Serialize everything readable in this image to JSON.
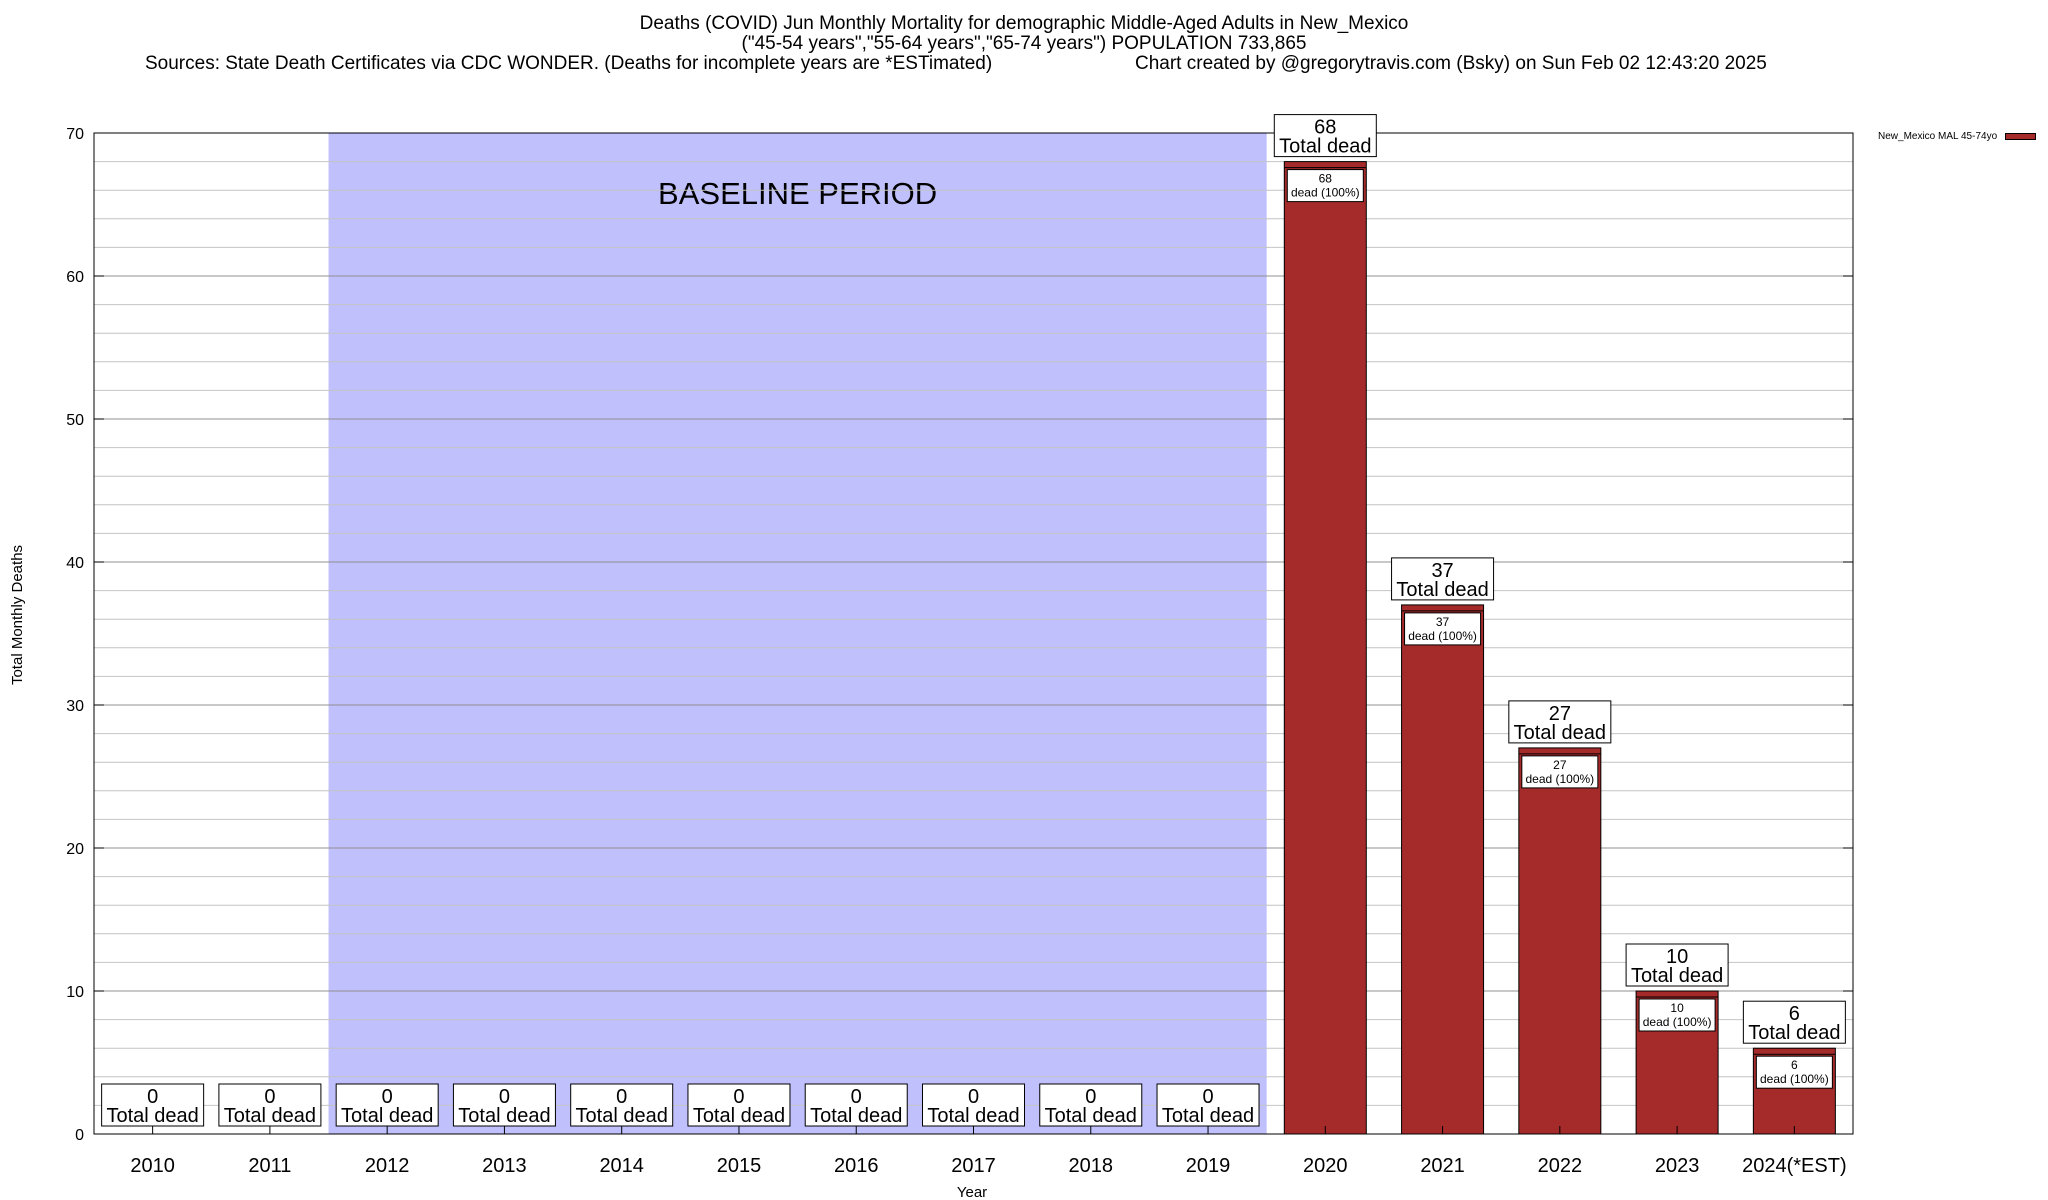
{
  "header": {
    "title_line1": "Deaths (COVID) Jun Monthly Mortality for demographic Middle-Aged Adults in New_Mexico",
    "title_line2": "(\"45-54 years\",\"55-64 years\",\"65-74 years\") POPULATION 733,865",
    "sources": "Sources: State Death Certificates via CDC WONDER. (Deaths for incomplete years are *ESTimated)",
    "credit": "Chart created by @gregorytravis.com (Bsky) on Sun Feb 02 12:43:20 2025"
  },
  "chart_data": {
    "type": "bar",
    "xlabel": "Year",
    "ylabel": "Total Monthly Deaths",
    "ylim": [
      0,
      70
    ],
    "yticks": [
      0,
      10,
      20,
      30,
      40,
      50,
      60,
      70
    ],
    "grid": true,
    "categories": [
      "2010",
      "2011",
      "2012",
      "2013",
      "2014",
      "2015",
      "2016",
      "2017",
      "2018",
      "2019",
      "2020",
      "2021",
      "2022",
      "2023",
      "2024(*EST)"
    ],
    "series": [
      {
        "name": "New_Mexico MAL 45-74yo",
        "values": [
          0,
          0,
          0,
          0,
          0,
          0,
          0,
          0,
          0,
          0,
          68,
          37,
          27,
          10,
          6
        ]
      }
    ],
    "total_label": "Total dead",
    "inner_label": "dead (100%)",
    "baseline": {
      "label": "BASELINE PERIOD",
      "start": "2012",
      "end": "2019",
      "color": "#c0c0fc"
    },
    "bar_color": "#a52a2a",
    "legend_position": "top-right"
  }
}
